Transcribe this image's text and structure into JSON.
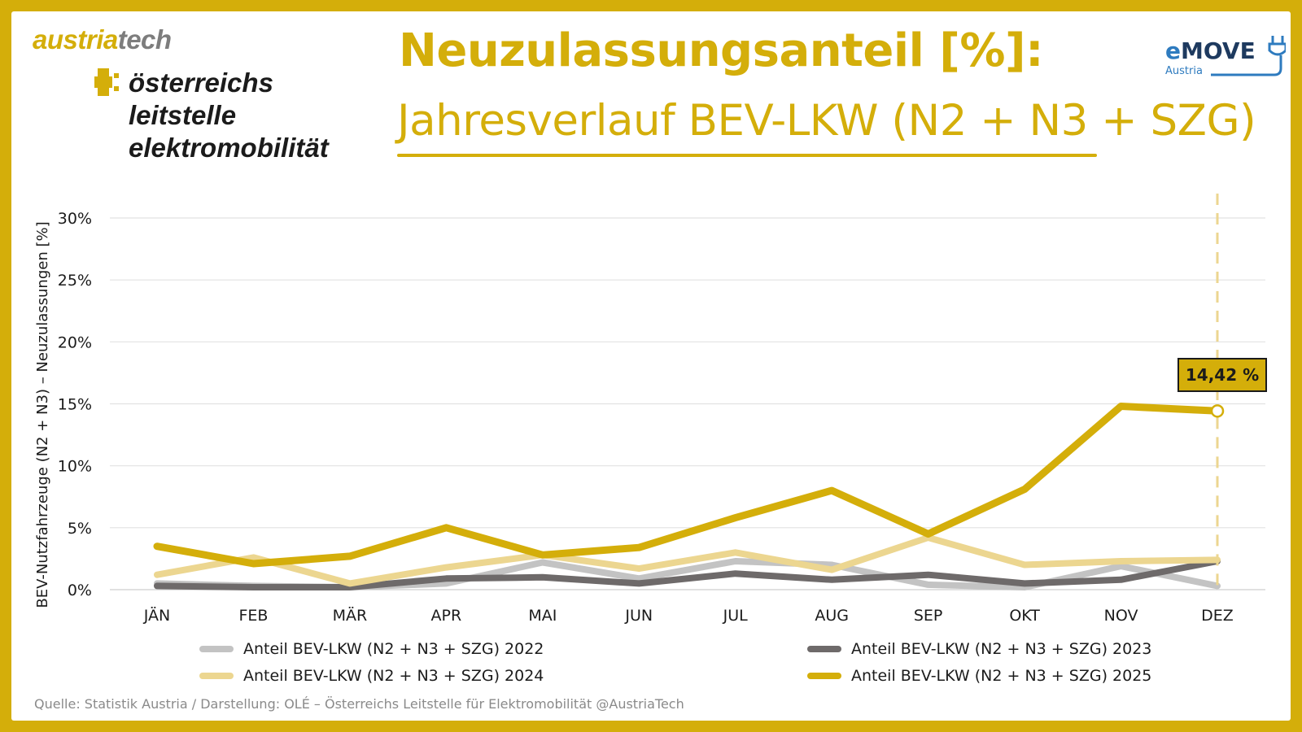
{
  "header": {
    "brand_austria": "austria",
    "brand_tech": "tech",
    "ole_line1": "österreichs",
    "ole_line2": "leitstelle",
    "ole_line3": "elektromobilität",
    "title": "Neuzulassungsanteil [%]:",
    "subtitle": "Jahresverlauf BEV-LKW (N2 + N3 + SZG)",
    "emove_e": "e",
    "emove_move": "MOVE",
    "emove_sub": "Austria"
  },
  "source": "Quelle: Statistik Austria / Darstellung: OLÉ – Österreichs Leitstelle für Elektromobilität @AustriaTech",
  "colors": {
    "accent": "#d4ae0a",
    "series_2022": "#c3c3c3",
    "series_2023": "#6e6a6a",
    "series_2024": "#ecd690",
    "series_2025": "#d4ae0a",
    "grid": "#e2e2e2"
  },
  "chart_data": {
    "type": "line",
    "title": "Jahresverlauf BEV-LKW (N2 + N3 + SZG)",
    "xlabel": "",
    "ylabel": "BEV-Nutzfahrzeuge (N2 + N3) – Neuzulassungen [%]",
    "ylim": [
      0,
      30
    ],
    "yticks": [
      0,
      5,
      10,
      15,
      20,
      25,
      30
    ],
    "ytick_labels": [
      "0%",
      "5%",
      "10%",
      "15%",
      "20%",
      "25%",
      "30%"
    ],
    "categories": [
      "JÄN",
      "FEB",
      "MÄR",
      "APR",
      "MAI",
      "JUN",
      "JUL",
      "AUG",
      "SEP",
      "OKT",
      "NOV",
      "DEZ"
    ],
    "series": [
      {
        "name": "Anteil BEV-LKW (N2 + N3 + SZG) 2022",
        "key": "s2022",
        "values": [
          0.5,
          0.3,
          0.2,
          0.5,
          2.2,
          0.9,
          2.3,
          2.0,
          0.4,
          0.2,
          1.9,
          0.3
        ]
      },
      {
        "name": "Anteil BEV-LKW (N2 + N3 + SZG) 2023",
        "key": "s2023",
        "values": [
          0.3,
          0.2,
          0.2,
          0.9,
          1.0,
          0.5,
          1.3,
          0.8,
          1.2,
          0.5,
          0.8,
          2.3
        ]
      },
      {
        "name": "Anteil BEV-LKW (N2 + N3 + SZG) 2024",
        "key": "s2024",
        "values": [
          1.2,
          2.6,
          0.5,
          1.8,
          2.8,
          1.7,
          3.0,
          1.6,
          4.2,
          2.0,
          2.3,
          2.4
        ]
      },
      {
        "name": "Anteil BEV-LKW (N2 + N3 + SZG) 2025",
        "key": "s2025",
        "values": [
          3.5,
          2.1,
          2.7,
          5.0,
          2.8,
          3.4,
          5.8,
          8.0,
          4.5,
          8.1,
          14.8,
          14.42
        ]
      }
    ],
    "annotation": {
      "label": "14,42 %",
      "category": "DEZ",
      "value": 14.42
    },
    "legend_position": "bottom"
  }
}
